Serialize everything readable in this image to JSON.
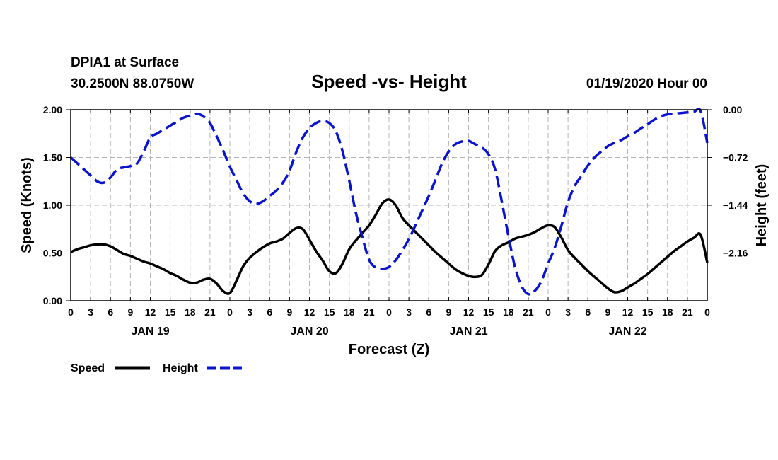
{
  "chart_data": {
    "type": "line",
    "station": "DPIA1 at Surface",
    "location": "30.2500N 88.0750W",
    "title": "Speed -vs- Height",
    "run": "01/19/2020 Hour 00",
    "xlabel": "Forecast (Z)",
    "ylabel_left": "Speed (Knots)",
    "ylabel_right": "Height (feet)",
    "x_range_hours": [
      0,
      96
    ],
    "ylim_left": [
      0,
      2
    ],
    "ylim_right": [
      -2.88,
      0
    ],
    "left_ticks": [
      "0.00",
      "0.50",
      "1.00",
      "1.50",
      "2.00"
    ],
    "right_ticks": [
      "0.00",
      "−0.72",
      "−1.44",
      "−2.16"
    ],
    "right_tick_values": [
      0,
      -0.72,
      -1.44,
      -2.16
    ],
    "x_tick_labels": [
      "0",
      "3",
      "6",
      "9",
      "12",
      "15",
      "18",
      "21",
      "0",
      "3",
      "6",
      "9",
      "12",
      "15",
      "18",
      "21",
      "0",
      "3",
      "6",
      "9",
      "12",
      "15",
      "18",
      "21",
      "0",
      "3",
      "6",
      "9",
      "12",
      "15",
      "18",
      "21",
      "0"
    ],
    "day_labels": [
      "JAN 19",
      "JAN 20",
      "JAN 21",
      "JAN 22"
    ],
    "grid": true,
    "legend_position": "bottom-left",
    "series": [
      {
        "name": "Speed",
        "axis": "left",
        "color": "#000000",
        "style": "solid",
        "x": [
          0,
          1,
          2,
          3,
          4,
          5,
          6,
          7,
          8,
          9,
          10,
          11,
          12,
          13,
          14,
          15,
          16,
          17,
          18,
          19,
          20,
          21,
          22,
          23,
          24,
          25,
          26,
          27,
          28,
          29,
          30,
          31,
          32,
          33,
          34,
          35,
          36,
          37,
          38,
          39,
          40,
          41,
          42,
          43,
          44,
          45,
          46,
          47,
          48,
          49,
          50,
          51,
          52,
          53,
          54,
          55,
          56,
          57,
          58,
          59,
          60,
          61,
          62,
          63,
          64,
          65,
          66,
          67,
          68,
          69,
          70,
          71,
          72,
          73,
          74,
          75,
          76,
          77,
          78,
          79,
          80,
          81,
          82,
          83,
          84,
          85,
          86,
          87,
          88,
          89,
          90,
          91,
          92,
          93,
          94,
          95,
          96
        ],
        "values": [
          0.51,
          0.54,
          0.56,
          0.58,
          0.59,
          0.59,
          0.57,
          0.53,
          0.49,
          0.47,
          0.44,
          0.41,
          0.39,
          0.36,
          0.33,
          0.29,
          0.26,
          0.22,
          0.19,
          0.19,
          0.22,
          0.23,
          0.18,
          0.1,
          0.08,
          0.21,
          0.36,
          0.45,
          0.51,
          0.56,
          0.6,
          0.62,
          0.65,
          0.71,
          0.76,
          0.75,
          0.64,
          0.52,
          0.42,
          0.31,
          0.29,
          0.39,
          0.54,
          0.63,
          0.71,
          0.79,
          0.9,
          1.02,
          1.06,
          1.0,
          0.87,
          0.79,
          0.72,
          0.65,
          0.58,
          0.51,
          0.45,
          0.39,
          0.33,
          0.29,
          0.26,
          0.25,
          0.27,
          0.38,
          0.52,
          0.58,
          0.61,
          0.65,
          0.67,
          0.69,
          0.72,
          0.76,
          0.79,
          0.77,
          0.66,
          0.53,
          0.45,
          0.38,
          0.31,
          0.25,
          0.19,
          0.13,
          0.09,
          0.1,
          0.14,
          0.18,
          0.23,
          0.28,
          0.34,
          0.4,
          0.46,
          0.52,
          0.57,
          0.62,
          0.66,
          0.69,
          0.4
        ]
      },
      {
        "name": "Height",
        "axis": "right",
        "color": "#0a14cc",
        "style": "dashed",
        "x": [
          0,
          1,
          2,
          3,
          4,
          5,
          6,
          7,
          8,
          9,
          10,
          11,
          12,
          13,
          14,
          15,
          16,
          17,
          18,
          19,
          20,
          21,
          22,
          23,
          24,
          25,
          26,
          27,
          28,
          29,
          30,
          31,
          32,
          33,
          34,
          35,
          36,
          37,
          38,
          39,
          40,
          41,
          42,
          43,
          44,
          45,
          46,
          47,
          48,
          49,
          50,
          51,
          52,
          53,
          54,
          55,
          56,
          57,
          58,
          59,
          60,
          61,
          62,
          63,
          64,
          65,
          66,
          67,
          68,
          69,
          70,
          71,
          72,
          73,
          74,
          75,
          76,
          77,
          78,
          79,
          80,
          81,
          82,
          83,
          84,
          85,
          86,
          87,
          88,
          89,
          90,
          91,
          92,
          93,
          94,
          95,
          96
        ],
        "values": [
          -0.72,
          -0.81,
          -0.9,
          -0.99,
          -1.08,
          -1.1,
          -1.02,
          -0.9,
          -0.87,
          -0.85,
          -0.81,
          -0.63,
          -0.42,
          -0.36,
          -0.3,
          -0.24,
          -0.18,
          -0.12,
          -0.09,
          -0.06,
          -0.1,
          -0.2,
          -0.4,
          -0.62,
          -0.86,
          -1.06,
          -1.26,
          -1.38,
          -1.42,
          -1.38,
          -1.3,
          -1.22,
          -1.1,
          -0.92,
          -0.64,
          -0.42,
          -0.28,
          -0.2,
          -0.17,
          -0.2,
          -0.33,
          -0.63,
          -1.07,
          -1.55,
          -1.93,
          -2.26,
          -2.38,
          -2.4,
          -2.37,
          -2.27,
          -2.12,
          -1.95,
          -1.74,
          -1.52,
          -1.3,
          -1.06,
          -0.81,
          -0.63,
          -0.52,
          -0.48,
          -0.47,
          -0.52,
          -0.57,
          -0.67,
          -0.9,
          -1.38,
          -1.9,
          -2.37,
          -2.66,
          -2.78,
          -2.73,
          -2.58,
          -2.32,
          -2.08,
          -1.75,
          -1.39,
          -1.15,
          -1.0,
          -0.84,
          -0.72,
          -0.63,
          -0.55,
          -0.5,
          -0.46,
          -0.4,
          -0.35,
          -0.28,
          -0.22,
          -0.15,
          -0.1,
          -0.07,
          -0.06,
          -0.05,
          -0.04,
          -0.03,
          -0.02,
          -0.5
        ]
      }
    ]
  }
}
